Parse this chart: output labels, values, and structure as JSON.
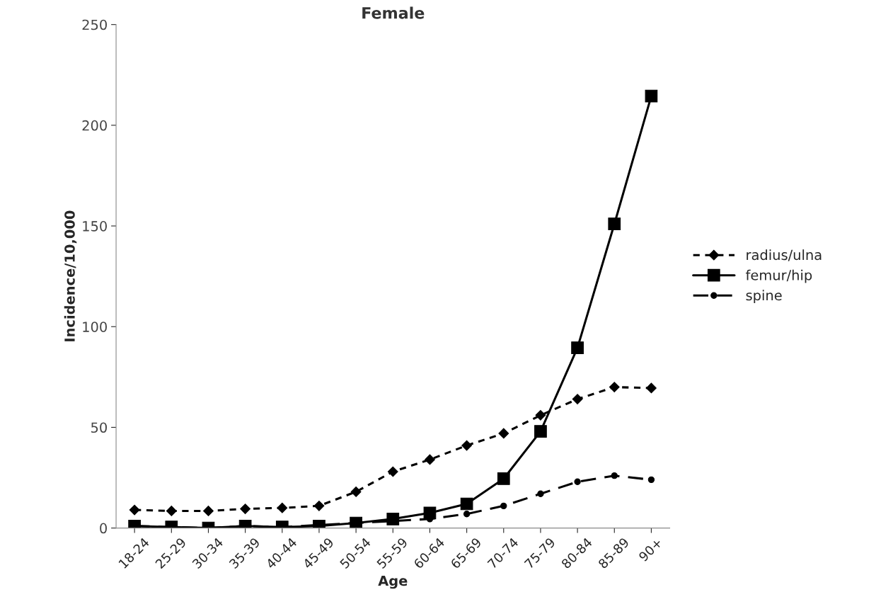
{
  "chart_data": {
    "type": "line",
    "title": "Female",
    "xlabel": "Age",
    "ylabel": "Incidence/10,000",
    "categories": [
      "18-24",
      "25-29",
      "30-34",
      "35-39",
      "40-44",
      "45-49",
      "50-54",
      "55-59",
      "60-64",
      "65-69",
      "70-74",
      "75-79",
      "80-84",
      "85-89",
      "90+"
    ],
    "series": [
      {
        "name": "radius/ulna",
        "color": "#000000",
        "marker": "diamond",
        "line_style": "dotted",
        "values": [
          9,
          8.5,
          8.5,
          9.5,
          10,
          11,
          18,
          28,
          34,
          41,
          47,
          56,
          64,
          70,
          69.5
        ]
      },
      {
        "name": "femur/hip",
        "color": "#000000",
        "marker": "square",
        "line_style": "solid",
        "values": [
          1,
          0.5,
          0,
          1,
          0.5,
          1,
          2.5,
          4.5,
          7.5,
          12,
          24.5,
          48,
          89.5,
          151,
          214.5
        ]
      },
      {
        "name": "spine",
        "color": "#000000",
        "marker": "circle",
        "line_style": "dashed",
        "values": [
          1,
          0.5,
          0,
          1,
          0.5,
          1.5,
          2.5,
          3.5,
          4.5,
          7,
          11,
          17,
          23,
          26,
          24
        ]
      }
    ],
    "ylim": [
      0,
      250
    ],
    "yticks": [
      0,
      50,
      100,
      150,
      200,
      250
    ],
    "grid": false,
    "legend": "right"
  }
}
